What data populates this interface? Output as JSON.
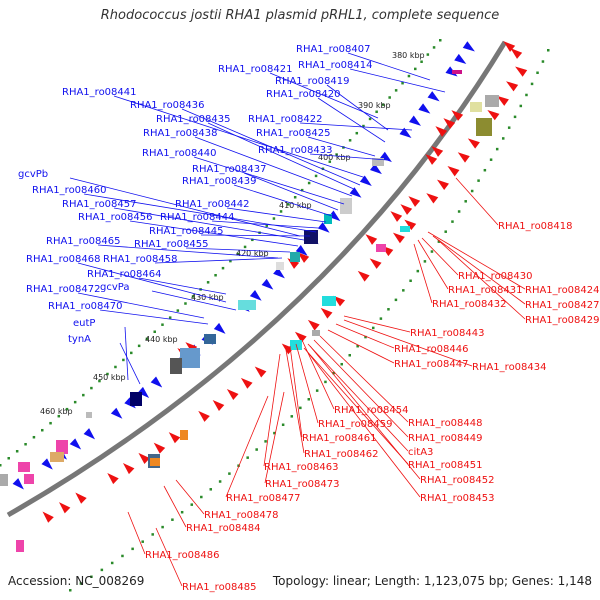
{
  "title": "Rhodococcus jostii RHA1 plasmid pRHL1, complete sequence",
  "accession": "Accession: NC_008269",
  "topology": "Topology: linear; Length: 1,123,075 bp; Genes: 1,148",
  "colors": {
    "backbone": "#777777",
    "forward": "#1010ee",
    "reverse": "#ee1111",
    "tick": "#2a8a2a"
  },
  "kbp_ticks": [
    "380 kbp",
    "390 kbp",
    "400 kbp",
    "410 kbp",
    "420 kbp",
    "430 kbp",
    "440 kbp",
    "450 kbp",
    "460 kbp"
  ],
  "forward_genes": [
    "RHA1_ro08407",
    "RHA1_ro08414",
    "RHA1_ro08421",
    "RHA1_ro08419",
    "RHA1_ro08420",
    "RHA1_ro08441",
    "RHA1_ro08436",
    "RHA1_ro08422",
    "RHA1_ro08435",
    "RHA1_ro08425",
    "RHA1_ro08438",
    "RHA1_ro08433",
    "RHA1_ro08440",
    "RHA1_ro08437",
    "RHA1_ro08439",
    "gcvPb",
    "RHA1_ro08460",
    "RHA1_ro08442",
    "RHA1_ro08457",
    "RHA1_ro08444",
    "RHA1_ro08456",
    "RHA1_ro08445",
    "RHA1_ro08465",
    "RHA1_ro08455",
    "RHA1_ro08468",
    "RHA1_ro08458",
    "RHA1_ro08464",
    "RHA1_ro08472",
    "gcvPa",
    "RHA1_ro08470",
    "eutP",
    "tynA"
  ],
  "reverse_genes": [
    "RHA1_ro08418",
    "RHA1_ro08430",
    "RHA1_ro08424",
    "RHA1_ro08431",
    "RHA1_ro08427",
    "RHA1_ro08432",
    "RHA1_ro08429",
    "RHA1_ro08443",
    "RHA1_ro08446",
    "RHA1_ro08447",
    "RHA1_ro08434",
    "RHA1_ro08454",
    "RHA1_ro08448",
    "RHA1_ro08459",
    "RHA1_ro08449",
    "RHA1_ro08461",
    "citA3",
    "RHA1_ro08462",
    "RHA1_ro08451",
    "RHA1_ro08463",
    "RHA1_ro08473",
    "RHA1_ro08452",
    "RHA1_ro08477",
    "RHA1_ro08453",
    "RHA1_ro08478",
    "RHA1_ro08484",
    "RHA1_ro08486",
    "RHA1_ro08485"
  ]
}
